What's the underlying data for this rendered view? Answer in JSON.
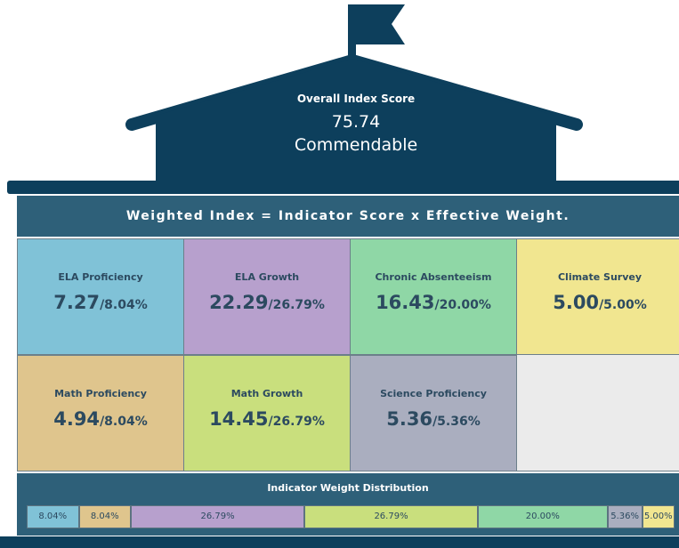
{
  "header": {
    "title": "Overall Index Score",
    "score": "75.74",
    "rating": "Commendable"
  },
  "banner": "Weighted Index = Indicator Score x Effective Weight.",
  "tiles": [
    {
      "name": "ELA Proficiency",
      "score": "7.27",
      "weight": "/8.04%",
      "color": "#80c2d7"
    },
    {
      "name": "ELA Growth",
      "score": "22.29",
      "weight": "/26.79%",
      "color": "#b7a0cd"
    },
    {
      "name": "Chronic Absenteeism",
      "score": "16.43",
      "weight": "/20.00%",
      "color": "#8fd7a6"
    },
    {
      "name": "Climate Survey",
      "score": "5.00",
      "weight": "/5.00%",
      "color": "#f1e690"
    },
    {
      "name": "Math Proficiency",
      "score": "4.94",
      "weight": "/8.04%",
      "color": "#dfc58d"
    },
    {
      "name": "Math Growth",
      "score": "14.45",
      "weight": "/26.79%",
      "color": "#c9df7d"
    },
    {
      "name": "Science Proficiency",
      "score": "5.36",
      "weight": "/5.36%",
      "color": "#aaaebf"
    }
  ],
  "distribution": {
    "title": "Indicator Weight Distribution",
    "segments": [
      {
        "value": 8.04,
        "label": "8.04%",
        "color": "#80c2d7"
      },
      {
        "value": 8.04,
        "label": "8.04%",
        "color": "#dfc58d"
      },
      {
        "value": 26.79,
        "label": "26.79%",
        "color": "#b7a0cd"
      },
      {
        "value": 26.79,
        "label": "26.79%",
        "color": "#c9df7d"
      },
      {
        "value": 20.0,
        "label": "20.00%",
        "color": "#8fd7a6"
      },
      {
        "value": 5.36,
        "label": "5.36%",
        "color": "#aaaebf"
      },
      {
        "value": 5.0,
        "label": "5.00%",
        "color": "#f1e690"
      }
    ]
  }
}
